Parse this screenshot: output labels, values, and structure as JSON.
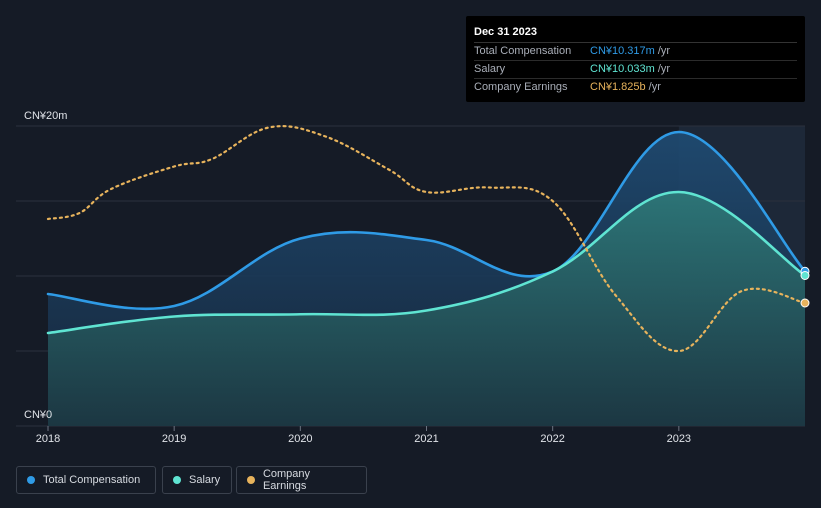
{
  "tooltip": {
    "date": "Dec 31 2023",
    "rows": [
      {
        "label": "Total Compensation",
        "value": "CN¥10.317m",
        "unit": "/yr"
      },
      {
        "label": "Salary",
        "value": "CN¥10.033m",
        "unit": "/yr"
      },
      {
        "label": "Company Earnings",
        "value": "CN¥1.825b",
        "unit": "/yr"
      }
    ]
  },
  "legend": [
    {
      "label": "Total Compensation",
      "color": "#2f9be6"
    },
    {
      "label": "Salary",
      "color": "#5fe4d2"
    },
    {
      "label": "Company Earnings",
      "color": "#e7b35c"
    }
  ],
  "colors": {
    "total": "#2f9be6",
    "salary": "#5fe4d2",
    "earnings": "#e7b35c",
    "grid": "#2a313d",
    "tick": "#e0e3e8"
  },
  "chart_data": {
    "type": "area",
    "y_axis_labels": [
      "CN¥20m",
      "CN¥0"
    ],
    "ylim": [
      0,
      20
    ],
    "y_unit": "CN¥ millions",
    "xlim": [
      2018,
      2024
    ],
    "x_ticks": [
      "2018",
      "2019",
      "2020",
      "2021",
      "2022",
      "2023"
    ],
    "highlight_from": 2023,
    "series": [
      {
        "name": "Total Compensation",
        "key": "total",
        "points": [
          [
            2018,
            8.8
          ],
          [
            2019,
            8.0
          ],
          [
            2020,
            12.5
          ],
          [
            2021,
            12.4
          ],
          [
            2022,
            10.3
          ],
          [
            2023,
            19.6
          ],
          [
            2024,
            10.317
          ]
        ]
      },
      {
        "name": "Salary",
        "key": "salary",
        "points": [
          [
            2018,
            6.2
          ],
          [
            2019,
            7.3
          ],
          [
            2020,
            7.45
          ],
          [
            2021,
            7.7
          ],
          [
            2022,
            10.3
          ],
          [
            2023,
            15.6
          ],
          [
            2024,
            10.033
          ]
        ]
      }
    ],
    "earnings_series": {
      "name": "Company Earnings",
      "key": "earnings",
      "note": "plotted on an independent scale (max ≈ 20m-line), dotted",
      "scale_max": 20,
      "points": [
        [
          2018,
          13.8
        ],
        [
          2018.25,
          14.2
        ],
        [
          2018.5,
          15.8
        ],
        [
          2019,
          17.3
        ],
        [
          2019.3,
          17.8
        ],
        [
          2019.75,
          19.9
        ],
        [
          2020.2,
          19.3
        ],
        [
          2020.7,
          17.1
        ],
        [
          2021,
          15.6
        ],
        [
          2021.5,
          15.9
        ],
        [
          2022,
          15.0
        ],
        [
          2022.5,
          8.7
        ],
        [
          2023,
          5.0
        ],
        [
          2023.5,
          9.0
        ],
        [
          2024,
          8.2
        ]
      ]
    }
  }
}
